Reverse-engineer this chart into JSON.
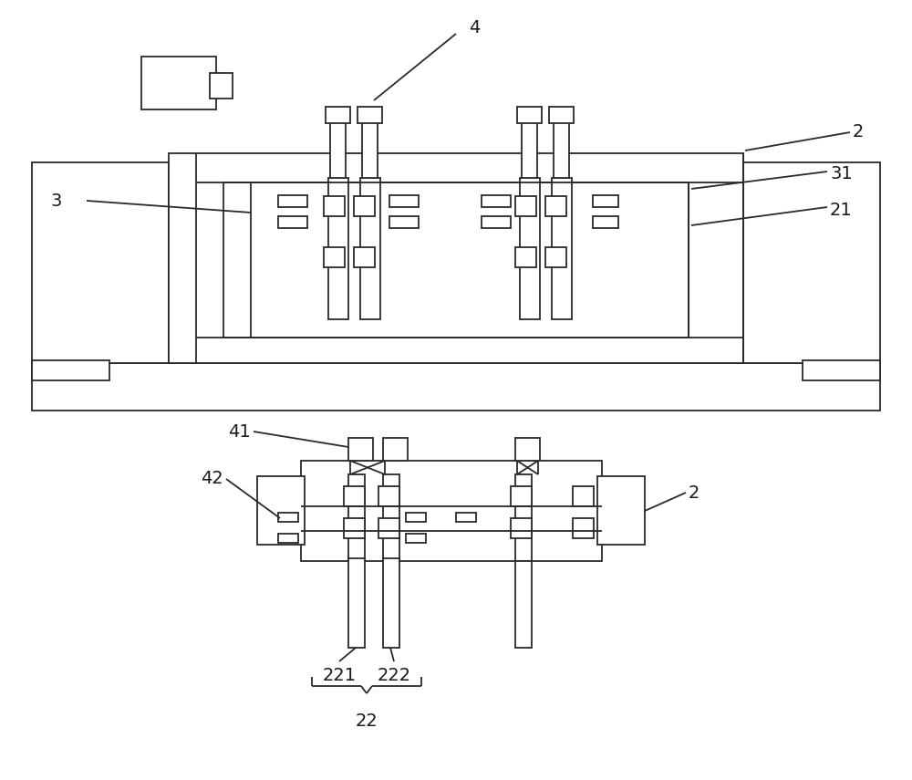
{
  "bg_color": "#ffffff",
  "line_color": "#2a2a2a",
  "label_color": "#1a1a1a",
  "lw": 1.3,
  "font_size": 14
}
